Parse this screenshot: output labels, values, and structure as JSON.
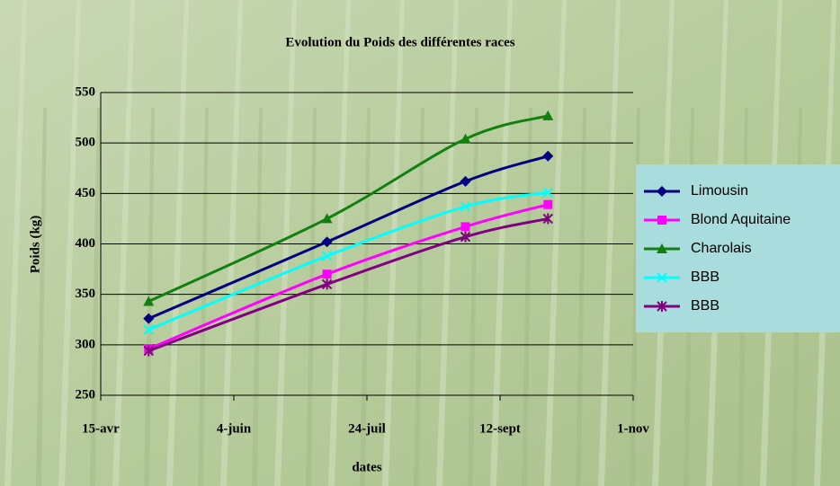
{
  "chart_data": {
    "type": "line",
    "title": "Evolution du Poids des différentes races",
    "x_label": "dates",
    "y_label": "Poids (kg)",
    "x": [
      123,
      190,
      242,
      273
    ],
    "xlim": [
      105,
      305
    ],
    "xticks": [
      {
        "value": 105,
        "label": "15-avr"
      },
      {
        "value": 155,
        "label": "4-juin"
      },
      {
        "value": 205,
        "label": "24-juil"
      },
      {
        "value": 255,
        "label": "12-sept"
      },
      {
        "value": 305,
        "label": "1-nov"
      }
    ],
    "ylim": [
      250,
      550
    ],
    "yticks": [
      250,
      300,
      350,
      400,
      450,
      500,
      550
    ],
    "grid": true,
    "legend": "right",
    "series": [
      {
        "name": "Limousin",
        "color": "#000080",
        "marker": "diamond",
        "values": [
          326,
          402,
          462,
          487
        ]
      },
      {
        "name": "Blond Aquitaine",
        "color": "#ff00ff",
        "marker": "square",
        "values": [
          296,
          370,
          417,
          439
        ]
      },
      {
        "name": "Charolais",
        "color": "#118011",
        "marker": "triangle",
        "values": [
          343,
          425,
          504,
          527
        ]
      },
      {
        "name": "BBB",
        "color": "#00ffff",
        "marker": "x",
        "values": [
          315,
          388,
          437,
          451
        ]
      },
      {
        "name": "BBB",
        "color": "#800080",
        "marker": "star",
        "values": [
          294,
          360,
          407,
          425
        ]
      }
    ]
  }
}
